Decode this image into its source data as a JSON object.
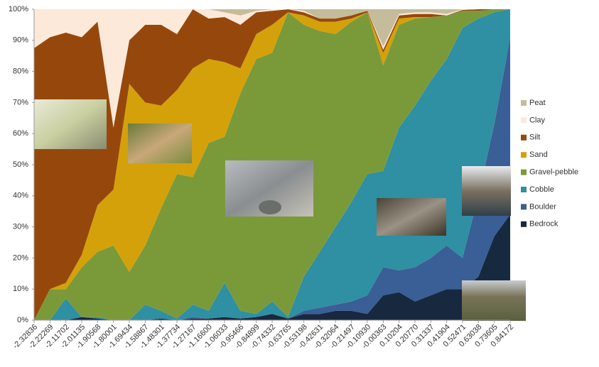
{
  "chart_data": {
    "type": "stacked_area_100",
    "categories": [
      "-2.32836",
      "-2.22269",
      "-2.11702",
      "-2.01135",
      "-1.90568",
      "-1.80001",
      "-1.69434",
      "-1.58867",
      "-1.48301",
      "-1.37734",
      "-1.27167",
      "-1.16600",
      "-1.06033",
      "-0.95466",
      "-0.84899",
      "-0.74332",
      "-0.63765",
      "-0.53198",
      "-0.42631",
      "-0.32064",
      "-0.21497",
      "-0.10930",
      "-0.00363",
      "0.10204",
      "0.20770",
      "0.31337",
      "0.41904",
      "0.52471",
      "0.63038",
      "0.73605",
      "0.84172"
    ],
    "series": [
      {
        "name": "Bedrock",
        "color": "#17293f",
        "values": [
          0,
          0,
          0,
          1,
          0.5,
          0,
          0,
          0,
          0.5,
          0,
          0.5,
          0.5,
          1,
          0.5,
          1,
          2,
          0.5,
          2,
          2,
          3,
          3,
          2,
          8,
          9,
          6,
          8,
          10,
          10,
          14,
          27,
          34
        ]
      },
      {
        "name": "Boulder",
        "color": "#3a5e96",
        "values": [
          0,
          0,
          0,
          0,
          0,
          0,
          0,
          0,
          0,
          0,
          0.5,
          0,
          0,
          0,
          0,
          0,
          0,
          1,
          2,
          2,
          3,
          6,
          9,
          7,
          11,
          12,
          14,
          10,
          26,
          36,
          57
        ]
      },
      {
        "name": "Cobble",
        "color": "#2f8fa3",
        "values": [
          0,
          0,
          7,
          0,
          0.5,
          0,
          0,
          5,
          2.5,
          0.5,
          4,
          2.5,
          11,
          2.5,
          1,
          4,
          0.5,
          11,
          18,
          25,
          32,
          39,
          31,
          46,
          52,
          57,
          60,
          74,
          57,
          36,
          9
        ]
      },
      {
        "name": "Gravel-pebble",
        "color": "#7a9a3a",
        "values": [
          0,
          10,
          3,
          16,
          21,
          24,
          15.5,
          19,
          33,
          46.5,
          41,
          54,
          47,
          70,
          82,
          80,
          98,
          81,
          71,
          62,
          58,
          52,
          34,
          33,
          28,
          20.5,
          14,
          5.5,
          2.5,
          1,
          0
        ]
      },
      {
        "name": "Sand",
        "color": "#d4a10a",
        "values": [
          0,
          0,
          2,
          4,
          15,
          18,
          60.5,
          46,
          33,
          27,
          35,
          27,
          24,
          8,
          8,
          9,
          0,
          3,
          3,
          4,
          1,
          0,
          4,
          2,
          0.5,
          0,
          0,
          0,
          0,
          0,
          0
        ]
      },
      {
        "name": "Silt",
        "color": "#96480c",
        "values": [
          87.5,
          81,
          80.5,
          70,
          59,
          20,
          14,
          25,
          26,
          18,
          19,
          13,
          14.5,
          14,
          7,
          4.5,
          1,
          1,
          1,
          1,
          1,
          0.5,
          1,
          1,
          1,
          1,
          0,
          0.3,
          0.5,
          0,
          0
        ]
      },
      {
        "name": "Clay",
        "color": "#fde9d9",
        "values": [
          12.5,
          9,
          7.5,
          9,
          4,
          38,
          10,
          5,
          5,
          8,
          0,
          3,
          1.5,
          3,
          0.5,
          0.5,
          0,
          0.5,
          0,
          0,
          0,
          0,
          1,
          0.5,
          0.5,
          0.5,
          0.5,
          0.2,
          0,
          0,
          0
        ]
      },
      {
        "name": "Peat",
        "color": "#c4bc9a",
        "values": [
          0,
          0,
          0,
          0,
          0,
          0,
          0,
          0,
          0,
          0,
          0,
          0,
          1,
          2,
          0.5,
          0,
          0,
          0.5,
          3,
          3,
          2,
          0.5,
          12,
          1.5,
          1,
          1,
          1.5,
          0,
          0,
          0,
          0
        ]
      }
    ],
    "ylim": [
      0,
      100
    ],
    "yticks": [
      {
        "value": 0,
        "label": "0%"
      },
      {
        "value": 10,
        "label": "10%"
      },
      {
        "value": 20,
        "label": "20%"
      },
      {
        "value": 30,
        "label": "30%"
      },
      {
        "value": 40,
        "label": "40%"
      },
      {
        "value": 50,
        "label": "50%"
      },
      {
        "value": 60,
        "label": "60%"
      },
      {
        "value": 70,
        "label": "70%"
      },
      {
        "value": 80,
        "label": "80%"
      },
      {
        "value": 90,
        "label": "90%"
      },
      {
        "value": 100,
        "label": "100%"
      }
    ],
    "legend": "right"
  }
}
